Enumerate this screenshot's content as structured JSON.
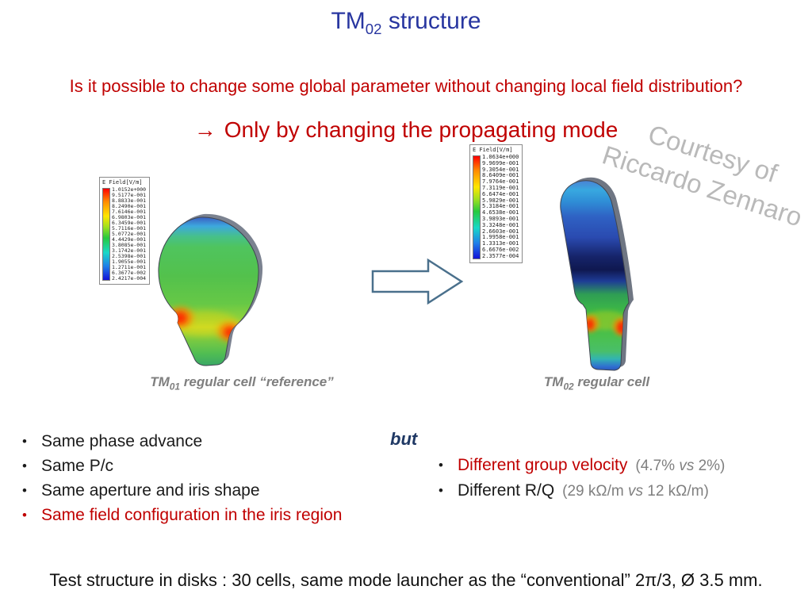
{
  "slide": {
    "title": {
      "prefix": "TM",
      "sub": "02",
      "suffix": " structure"
    },
    "question": "Is it possible to change some global parameter without changing local field distribution?",
    "answer": {
      "arrow": "→",
      "text": "Only by changing the propagating mode"
    },
    "watermark": {
      "line1": "Courtesy of",
      "line2": "Riccardo Zennaro"
    },
    "bottom_note": "Test structure in disks : 30 cells, same mode launcher as the “conventional” 2π/3,  Ø 3.5 mm."
  },
  "figures": {
    "left": {
      "legend_title": "E Field[V/m]",
      "legend_values": [
        "1.0152e+000",
        "9.5177e-001",
        "8.8833e-001",
        "8.2490e-001",
        "7.6146e-001",
        "6.9803e-001",
        "6.3459e-001",
        "5.7116e-001",
        "5.0772e-001",
        "4.4429e-001",
        "3.8085e-001",
        "3.1742e-001",
        "2.5398e-001",
        "1.9055e-001",
        "1.2711e-001",
        "6.3677e-002",
        "2.4217e-004"
      ],
      "caption": {
        "prefix": "TM",
        "sub": "01",
        "suffix": " regular cell “reference”"
      }
    },
    "right": {
      "legend_title": "E Field[V/m]",
      "legend_values": [
        "1.0634e+000",
        "9.9699e-001",
        "9.3054e-001",
        "8.6409e-001",
        "7.9764e-001",
        "7.3119e-001",
        "6.6474e-001",
        "5.9829e-001",
        "5.3184e-001",
        "4.6538e-001",
        "3.9893e-001",
        "3.3248e-001",
        "2.6603e-001",
        "1.9958e-001",
        "1.3313e-001",
        "6.6676e-002",
        "2.3577e-004"
      ]
    }
  },
  "comparison": {
    "same_bullets": {
      "b1": "Same phase advance",
      "b2": "Same P/c",
      "b3": "Same aperture and iris shape",
      "b4": "Same field configuration in the iris region"
    },
    "but_label": "but",
    "diff_bullets": {
      "d1_main": "Different group velocity",
      "d1_note_a": "(4.7% ",
      "d1_note_vs": "vs",
      "d1_note_b": " 2%)",
      "d2_main": "Different R/Q",
      "d2_note_a": "(29 kΩ/m ",
      "d2_note_vs": "vs",
      "d2_note_b": " 12 kΩ/m)"
    }
  },
  "colors": {
    "title_blue": "#2836a0",
    "accent_red": "#c00000",
    "but_blue": "#1f3864",
    "gray_text": "#7f7f7f"
  }
}
